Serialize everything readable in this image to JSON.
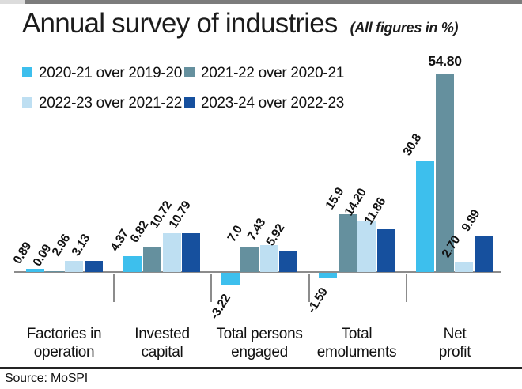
{
  "header": {
    "title": "Annual survey of industries",
    "subtitle": "(All figures in %)"
  },
  "legend": [
    {
      "label": "2020-21 over 2019-20",
      "color": "#3dbfed"
    },
    {
      "label": "2021-22 over 2020-21",
      "color": "#65909e"
    },
    {
      "label": "2022-23 over 2021-22",
      "color": "#bedff2"
    },
    {
      "label": "2023-24 over 2022-23",
      "color": "#16509e"
    }
  ],
  "chart_data": {
    "type": "bar",
    "title": "Annual survey of industries",
    "subtitle": "(All figures in %)",
    "categories": [
      [
        "Factories in",
        "operation"
      ],
      [
        "Invested",
        "capital"
      ],
      [
        "Total persons",
        "engaged"
      ],
      [
        "Total",
        "emoluments"
      ],
      [
        "Net",
        "profit"
      ]
    ],
    "series": [
      {
        "name": "2020-21 over 2019-20",
        "color": "#3dbfed",
        "values": [
          0.89,
          4.37,
          -3.22,
          -1.59,
          30.8
        ],
        "labels": [
          "0.89",
          "4.37",
          "-3.22",
          "-1.59",
          "30.8"
        ]
      },
      {
        "name": "2021-22 over 2020-21",
        "color": "#65909e",
        "values": [
          0.09,
          6.82,
          7.0,
          15.9,
          54.8
        ],
        "labels": [
          "0.09",
          "6.82",
          "7.0",
          "15.9",
          "54.80"
        ]
      },
      {
        "name": "2022-23 over 2021-22",
        "color": "#bedff2",
        "values": [
          2.96,
          10.72,
          7.43,
          14.2,
          2.7
        ],
        "labels": [
          "2.96",
          "10.72",
          "7.43",
          "14.20",
          "2.70"
        ]
      },
      {
        "name": "2023-24 over 2022-23",
        "color": "#16509e",
        "values": [
          3.13,
          10.79,
          5.92,
          11.86,
          9.89
        ],
        "labels": [
          "3.13",
          "10.79",
          "5.92",
          "11.86",
          "9.89"
        ]
      }
    ],
    "ylim": [
      -5,
      56
    ],
    "grid": false,
    "legend_position": "top-left",
    "value_labels": "rotated-diagonal",
    "flat_label": {
      "series_index": 1,
      "category_index": 4
    },
    "axis_color": "#8c8c8c"
  },
  "source": "Source: MoSPI"
}
